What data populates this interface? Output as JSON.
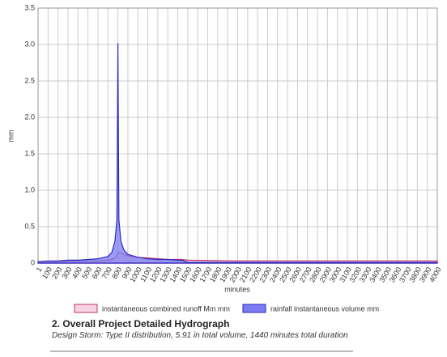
{
  "chart_data": {
    "type": "area",
    "ylabel": "mm",
    "xlabel": "minutes",
    "xlim": [
      0,
      4000
    ],
    "xticks": [
      1,
      100,
      200,
      300,
      400,
      500,
      600,
      700,
      800,
      900,
      1000,
      1100,
      1200,
      1300,
      1400,
      1500,
      1600,
      1700,
      1800,
      1900,
      2000,
      2100,
      2200,
      2300,
      2400,
      2500,
      2600,
      2700,
      2800,
      2900,
      3000,
      3100,
      3200,
      3300,
      3400,
      3500,
      3600,
      3700,
      3800,
      3900,
      4000
    ],
    "ylim": [
      0,
      3.5
    ],
    "yticks": [
      0,
      0.5,
      {
        "value": 1,
        "label": "1.0"
      },
      1.5,
      {
        "value": 2,
        "label": "2.0"
      },
      2.5,
      {
        "value": 3,
        "label": "3.0"
      },
      3.5
    ],
    "grid": true,
    "x": [
      0,
      100,
      200,
      300,
      400,
      500,
      600,
      700,
      740,
      770,
      790,
      800,
      810,
      830,
      860,
      900,
      1000,
      1100,
      1200,
      1300,
      1400,
      1440,
      1500,
      2000,
      2500,
      3000,
      3500,
      4000
    ],
    "series": [
      {
        "name": "instantaneous combined runoff Mm mm",
        "color": "#c2306a",
        "fill": "#f6d3e2",
        "values": [
          0,
          0.01,
          0.02,
          0.02,
          0.03,
          0.03,
          0.03,
          0.04,
          0.05,
          0.07,
          0.1,
          0.14,
          0.15,
          0.14,
          0.12,
          0.1,
          0.08,
          0.07,
          0.06,
          0.05,
          0.05,
          0.05,
          0.04,
          0.03,
          0.03,
          0.03,
          0.03,
          0.03
        ]
      },
      {
        "name": "rainfall instantaneous volume mm",
        "color": "#2a2ac0",
        "fill": "#7b7bf0",
        "values": [
          0.02,
          0.03,
          0.03,
          0.04,
          0.04,
          0.05,
          0.06,
          0.09,
          0.15,
          0.3,
          0.6,
          3.02,
          0.6,
          0.3,
          0.18,
          0.12,
          0.08,
          0.06,
          0.05,
          0.05,
          0.04,
          0.04,
          0.01,
          0.01,
          0.01,
          0.01,
          0.01,
          0.01
        ]
      }
    ]
  },
  "section": {
    "heading": "2. Overall Project Detailed Hydrograph",
    "description": "Design Storm: Type II distribution, 5.91 in total volume, 1440 minutes total duration"
  }
}
